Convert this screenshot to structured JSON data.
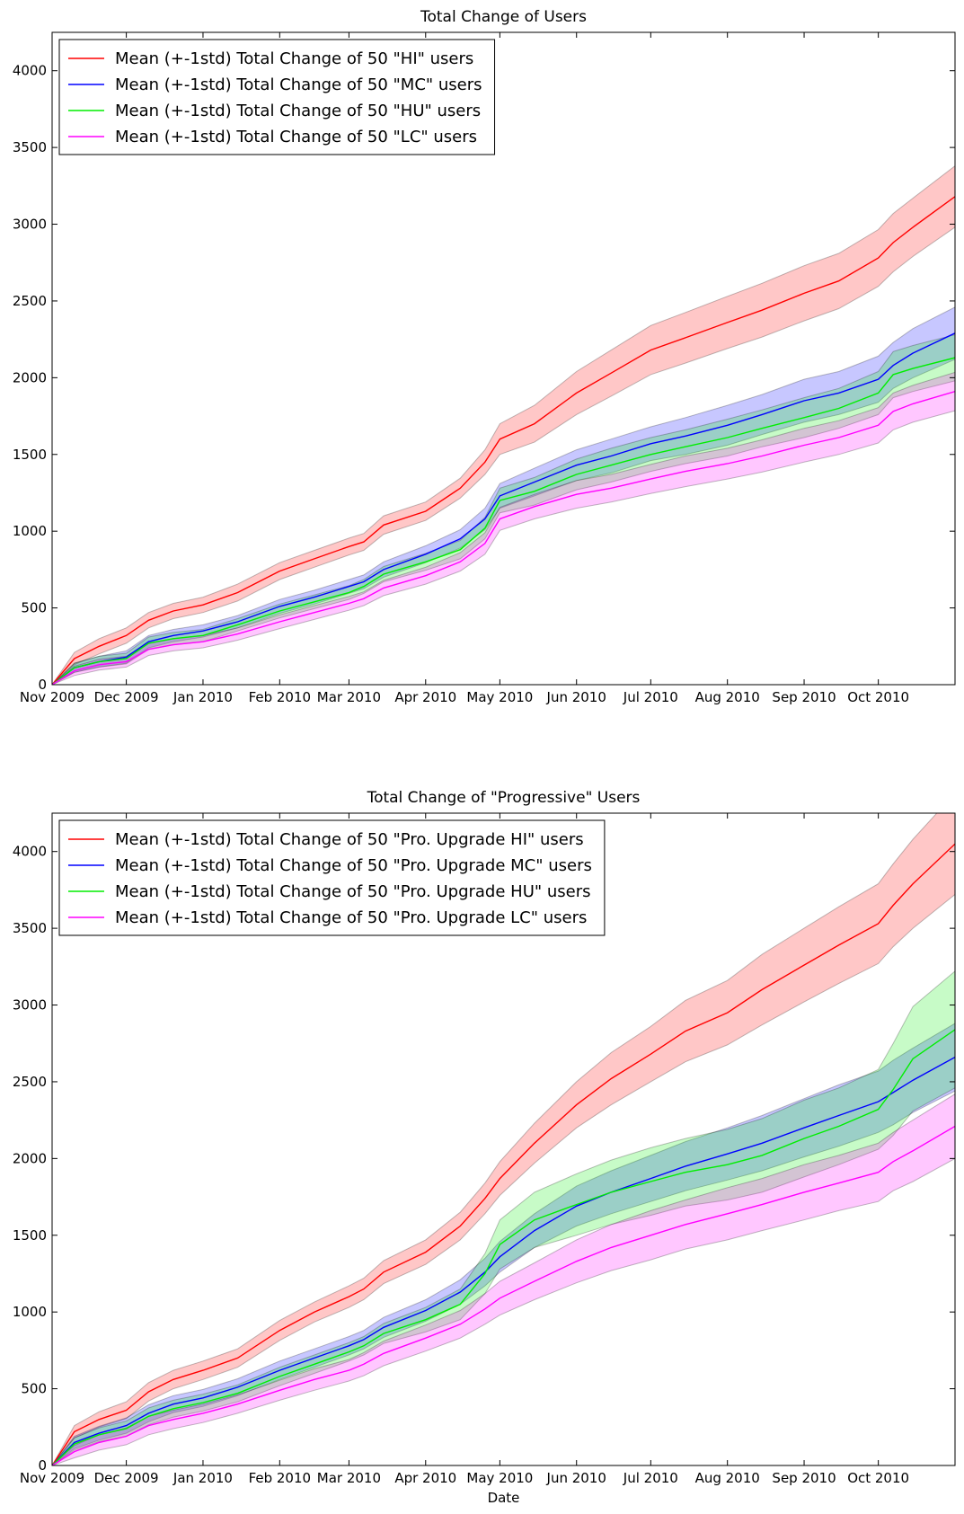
{
  "chart_data": [
    {
      "type": "line",
      "title": "Total Change of Users",
      "xlabel": "",
      "ylabel": "",
      "x_ticks": [
        "Nov 2009",
        "Dec 2009",
        "Jan 2010",
        "Feb 2010",
        "Mar 2010",
        "Apr 2010",
        "May 2010",
        "Jun 2010",
        "Jul 2010",
        "Aug 2010",
        "Sep 2010",
        "Oct 2010"
      ],
      "x_range": [
        "2009-11-01",
        "2010-11-01"
      ],
      "ylim": [
        0,
        4250
      ],
      "y_ticks": [
        0,
        500,
        1000,
        1500,
        2000,
        2500,
        3000,
        3500,
        4000
      ],
      "legend_position": "top-left",
      "grid": false,
      "x_dates": [
        "2009-11-01",
        "2009-11-10",
        "2009-11-20",
        "2009-12-01",
        "2009-12-10",
        "2009-12-20",
        "2010-01-01",
        "2010-01-15",
        "2010-02-01",
        "2010-02-15",
        "2010-03-01",
        "2010-03-07",
        "2010-03-15",
        "2010-04-01",
        "2010-04-15",
        "2010-04-25",
        "2010-05-01",
        "2010-05-15",
        "2010-06-01",
        "2010-06-15",
        "2010-07-01",
        "2010-07-15",
        "2010-08-01",
        "2010-08-15",
        "2010-09-01",
        "2010-09-15",
        "2010-10-01",
        "2010-10-07",
        "2010-10-15",
        "2010-11-01"
      ],
      "series": [
        {
          "name": "Mean (+-1std) Total Change of 50 \"HI\" users",
          "color": "#ff0000",
          "mean": [
            0,
            170,
            250,
            320,
            420,
            480,
            520,
            600,
            740,
            820,
            900,
            930,
            1040,
            1130,
            1280,
            1450,
            1600,
            1700,
            1900,
            2030,
            2180,
            2260,
            2360,
            2440,
            2550,
            2630,
            2780,
            2880,
            2980,
            3180
          ],
          "std": [
            0,
            40,
            50,
            50,
            50,
            50,
            50,
            55,
            55,
            55,
            55,
            55,
            60,
            60,
            65,
            80,
            100,
            120,
            140,
            150,
            160,
            165,
            170,
            175,
            180,
            180,
            185,
            190,
            190,
            200
          ]
        },
        {
          "name": "Mean (+-1std) Total Change of 50 \"MC\" users",
          "color": "#0000ff",
          "mean": [
            0,
            110,
            150,
            180,
            280,
            320,
            350,
            410,
            510,
            570,
            640,
            670,
            750,
            850,
            950,
            1080,
            1230,
            1320,
            1430,
            1490,
            1570,
            1620,
            1690,
            1760,
            1850,
            1900,
            1990,
            2080,
            2160,
            2290
          ],
          "std": [
            0,
            30,
            35,
            40,
            40,
            40,
            40,
            40,
            45,
            45,
            45,
            45,
            50,
            55,
            60,
            70,
            80,
            90,
            100,
            110,
            110,
            120,
            130,
            130,
            140,
            140,
            150,
            150,
            160,
            170
          ]
        },
        {
          "name": "Mean (+-1std) Total Change of 50 \"HU\" users",
          "color": "#00ee00",
          "mean": [
            0,
            110,
            150,
            170,
            270,
            300,
            320,
            390,
            480,
            540,
            600,
            640,
            720,
            800,
            880,
            1020,
            1200,
            1260,
            1370,
            1430,
            1500,
            1550,
            1610,
            1670,
            1740,
            1800,
            1900,
            2020,
            2060,
            2130
          ],
          "std": [
            0,
            30,
            35,
            35,
            40,
            40,
            40,
            40,
            45,
            45,
            45,
            45,
            50,
            55,
            60,
            70,
            80,
            90,
            100,
            110,
            110,
            110,
            120,
            120,
            130,
            130,
            140,
            150,
            150,
            150
          ]
        },
        {
          "name": "Mean (+-1std) Total Change of 50 \"LC\" users",
          "color": "#ff00ff",
          "mean": [
            0,
            90,
            130,
            150,
            230,
            260,
            280,
            330,
            410,
            470,
            530,
            560,
            630,
            710,
            800,
            920,
            1080,
            1160,
            1240,
            1280,
            1340,
            1390,
            1440,
            1490,
            1560,
            1610,
            1690,
            1780,
            1830,
            1910
          ],
          "std": [
            0,
            30,
            35,
            35,
            40,
            40,
            40,
            40,
            45,
            45,
            45,
            45,
            50,
            55,
            60,
            70,
            75,
            80,
            90,
            90,
            95,
            100,
            100,
            105,
            110,
            110,
            115,
            120,
            120,
            125
          ]
        }
      ]
    },
    {
      "type": "line",
      "title": "Total Change of \"Progressive\" Users",
      "xlabel": "Date",
      "ylabel": "",
      "x_ticks": [
        "Nov 2009",
        "Dec 2009",
        "Jan 2010",
        "Feb 2010",
        "Mar 2010",
        "Apr 2010",
        "May 2010",
        "Jun 2010",
        "Jul 2010",
        "Aug 2010",
        "Sep 2010",
        "Oct 2010"
      ],
      "x_range": [
        "2009-11-01",
        "2010-11-01"
      ],
      "ylim": [
        0,
        4250
      ],
      "y_ticks": [
        0,
        500,
        1000,
        1500,
        2000,
        2500,
        3000,
        3500,
        4000
      ],
      "legend_position": "top-left",
      "grid": false,
      "x_dates": [
        "2009-11-01",
        "2009-11-10",
        "2009-11-20",
        "2009-12-01",
        "2009-12-10",
        "2009-12-20",
        "2010-01-01",
        "2010-01-15",
        "2010-02-01",
        "2010-02-15",
        "2010-03-01",
        "2010-03-07",
        "2010-03-15",
        "2010-04-01",
        "2010-04-15",
        "2010-04-25",
        "2010-05-01",
        "2010-05-15",
        "2010-06-01",
        "2010-06-15",
        "2010-07-01",
        "2010-07-15",
        "2010-08-01",
        "2010-08-15",
        "2010-09-01",
        "2010-09-15",
        "2010-10-01",
        "2010-10-07",
        "2010-10-15",
        "2010-11-01"
      ],
      "series": [
        {
          "name": "Mean (+-1std) Total Change of 50 \"Pro. Upgrade HI\" users",
          "color": "#ff0000",
          "mean": [
            0,
            220,
            300,
            360,
            480,
            560,
            620,
            700,
            880,
            1000,
            1100,
            1150,
            1260,
            1390,
            1560,
            1740,
            1870,
            2100,
            2350,
            2520,
            2680,
            2830,
            2950,
            3100,
            3260,
            3390,
            3530,
            3650,
            3790,
            4050
          ],
          "std": [
            0,
            40,
            50,
            55,
            60,
            60,
            60,
            60,
            65,
            65,
            70,
            70,
            75,
            80,
            90,
            100,
            110,
            130,
            150,
            170,
            180,
            200,
            210,
            230,
            240,
            250,
            260,
            270,
            290,
            330
          ]
        },
        {
          "name": "Mean (+-1std) Total Change of 50 \"Pro. Upgrade MC\" users",
          "color": "#0000ff",
          "mean": [
            0,
            150,
            210,
            260,
            340,
            400,
            440,
            510,
            620,
            700,
            780,
            820,
            900,
            1010,
            1130,
            1260,
            1360,
            1530,
            1690,
            1780,
            1870,
            1950,
            2030,
            2100,
            2200,
            2280,
            2370,
            2430,
            2510,
            2660
          ],
          "std": [
            0,
            40,
            45,
            50,
            55,
            55,
            55,
            55,
            60,
            60,
            60,
            60,
            65,
            70,
            80,
            90,
            100,
            110,
            130,
            140,
            150,
            160,
            170,
            180,
            190,
            200,
            200,
            210,
            210,
            220
          ]
        },
        {
          "name": "Mean (+-1std) Total Change of 50 \"Pro. Upgrade HU\" users",
          "color": "#00ee00",
          "mean": [
            0,
            140,
            200,
            240,
            320,
            370,
            410,
            470,
            580,
            660,
            740,
            780,
            860,
            950,
            1050,
            1250,
            1440,
            1600,
            1700,
            1780,
            1850,
            1910,
            1960,
            2020,
            2130,
            2210,
            2320,
            2450,
            2650,
            2840
          ],
          "std": [
            0,
            40,
            45,
            50,
            55,
            55,
            55,
            55,
            60,
            60,
            60,
            60,
            65,
            80,
            100,
            130,
            160,
            180,
            200,
            210,
            220,
            220,
            230,
            240,
            250,
            250,
            260,
            300,
            340,
            380
          ]
        },
        {
          "name": "Mean (+-1std) Total Change of 50 \"Pro. Upgrade LC\" users",
          "color": "#ff00ff",
          "mean": [
            0,
            90,
            150,
            190,
            260,
            300,
            340,
            400,
            490,
            560,
            620,
            660,
            730,
            830,
            920,
            1020,
            1090,
            1200,
            1330,
            1420,
            1500,
            1570,
            1640,
            1700,
            1780,
            1840,
            1910,
            1980,
            2050,
            2210
          ],
          "std": [
            0,
            40,
            50,
            55,
            60,
            60,
            60,
            60,
            65,
            70,
            70,
            75,
            80,
            85,
            90,
            100,
            110,
            120,
            140,
            150,
            160,
            160,
            170,
            170,
            180,
            180,
            190,
            190,
            200,
            210
          ]
        }
      ]
    }
  ]
}
